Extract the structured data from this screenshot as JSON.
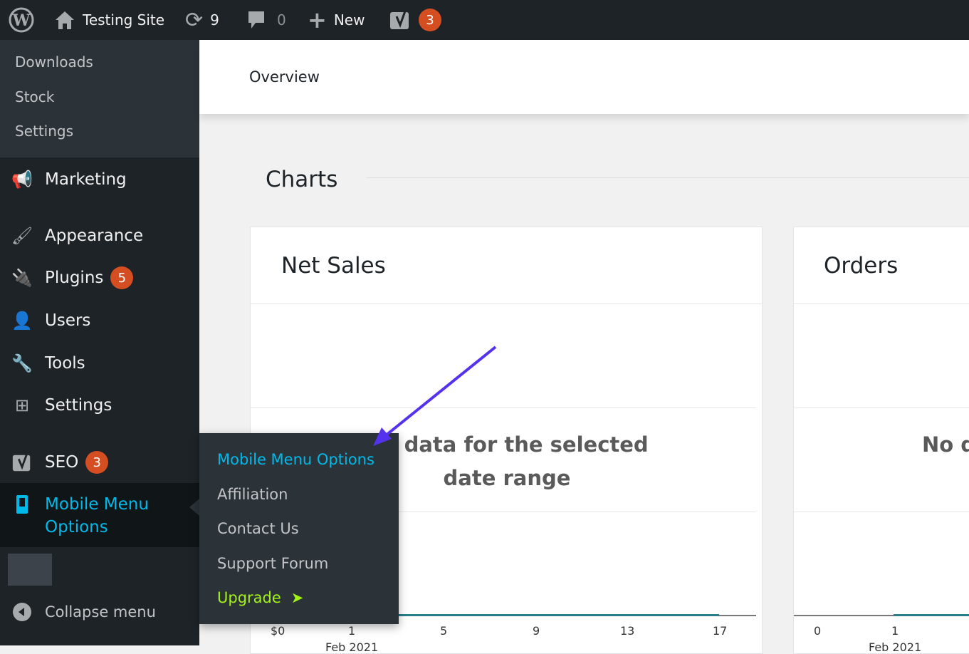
{
  "topbar": {
    "site_name": "Testing Site",
    "updates_count": "9",
    "comments_count": "0",
    "new_label": "New",
    "seo_count": "3"
  },
  "sidebar": {
    "submenu": [
      "Downloads",
      "Stock",
      "Settings"
    ],
    "items": [
      {
        "label": "Marketing",
        "icon": "megaphone-icon"
      },
      {
        "label": "Appearance",
        "icon": "paintbrush-icon"
      },
      {
        "label": "Plugins",
        "icon": "plugin-icon",
        "badge": "5"
      },
      {
        "label": "Users",
        "icon": "user-icon"
      },
      {
        "label": "Tools",
        "icon": "wrench-icon"
      },
      {
        "label": "Settings",
        "icon": "sliders-icon"
      },
      {
        "label": "SEO",
        "icon": "yoast-icon",
        "badge": "3"
      },
      {
        "label": "Mobile Menu Options",
        "icon": "mobile-icon"
      }
    ],
    "collapse_label": "Collapse menu"
  },
  "flyout": {
    "items": [
      "Mobile Menu Options",
      "Affiliation",
      "Contact Us",
      "Support Forum"
    ],
    "upgrade_label": "Upgrade",
    "accent": "#00b9eb",
    "upgrade_color": "#a2f217"
  },
  "main": {
    "header_tab": "Overview",
    "section_title": "Charts",
    "net_sales": {
      "title": "Net Sales",
      "no_data": "No data for the selected date range",
      "y_label": "$0",
      "x_ticks": [
        "1",
        "5",
        "9",
        "13",
        "17"
      ],
      "x_sub": "Feb 2021"
    },
    "orders": {
      "title": "Orders",
      "no_data": "No d",
      "y_label": "0",
      "x_ticks": [
        "1"
      ],
      "x_sub": "Feb 2021"
    }
  },
  "colors": {
    "arrow": "#5533ee",
    "line": "#2a7d8c",
    "badge": "#d54e21"
  }
}
